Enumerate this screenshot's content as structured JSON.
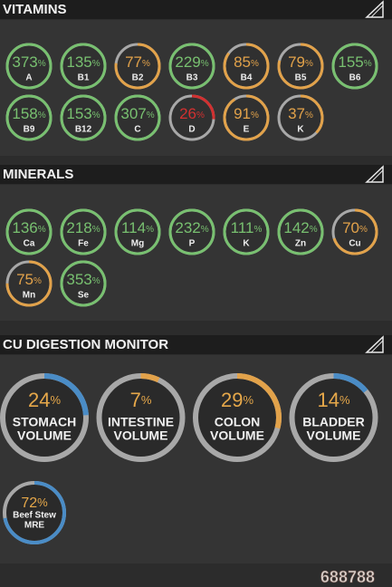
{
  "percent_sign": "%",
  "watermark": "688788",
  "vitamins": {
    "title": "VITAMINS",
    "items": [
      {
        "value": 373,
        "label": "A",
        "color": "#78c070"
      },
      {
        "value": 135,
        "label": "B1",
        "color": "#78c070"
      },
      {
        "value": 77,
        "label": "B2",
        "color": "#e2a24a"
      },
      {
        "value": 229,
        "label": "B3",
        "color": "#78c070"
      },
      {
        "value": 85,
        "label": "B4",
        "color": "#e2a24a"
      },
      {
        "value": 79,
        "label": "B5",
        "color": "#e2a24a"
      },
      {
        "value": 155,
        "label": "B6",
        "color": "#78c070"
      },
      {
        "value": 158,
        "label": "B9",
        "color": "#78c070"
      },
      {
        "value": 153,
        "label": "B12",
        "color": "#78c070"
      },
      {
        "value": 307,
        "label": "C",
        "color": "#78c070"
      },
      {
        "value": 26,
        "label": "D",
        "color": "#d23030"
      },
      {
        "value": 91,
        "label": "E",
        "color": "#e2a24a"
      },
      {
        "value": 37,
        "label": "K",
        "color": "#e2a24a"
      }
    ]
  },
  "minerals": {
    "title": "MINERALS",
    "items": [
      {
        "value": 136,
        "label": "Ca",
        "color": "#78c070"
      },
      {
        "value": 218,
        "label": "Fe",
        "color": "#78c070"
      },
      {
        "value": 114,
        "label": "Mg",
        "color": "#78c070"
      },
      {
        "value": 232,
        "label": "P",
        "color": "#78c070"
      },
      {
        "value": 111,
        "label": "K",
        "color": "#78c070"
      },
      {
        "value": 142,
        "label": "Zn",
        "color": "#78c070"
      },
      {
        "value": 70,
        "label": "Cu",
        "color": "#e2a24a"
      },
      {
        "value": 75,
        "label": "Mn",
        "color": "#e2a24a"
      },
      {
        "value": 353,
        "label": "Se",
        "color": "#78c070"
      }
    ]
  },
  "digestion": {
    "title": "CU DIGESTION MONITOR",
    "items": [
      {
        "value": 24,
        "label": [
          "STOMACH",
          "VOLUME"
        ],
        "color": "#4a8cc6"
      },
      {
        "value": 7,
        "label": [
          "INTESTINE",
          "VOLUME"
        ],
        "color": "#e2a24a"
      },
      {
        "value": 29,
        "label": [
          "COLON",
          "VOLUME"
        ],
        "color": "#e2a24a"
      },
      {
        "value": 14,
        "label": [
          "BLADDER",
          "VOLUME"
        ],
        "color": "#4a8cc6"
      },
      {
        "value": 72,
        "label": [
          "Beef Stew",
          "MRE"
        ],
        "color": "#4a8cc6"
      }
    ]
  }
}
